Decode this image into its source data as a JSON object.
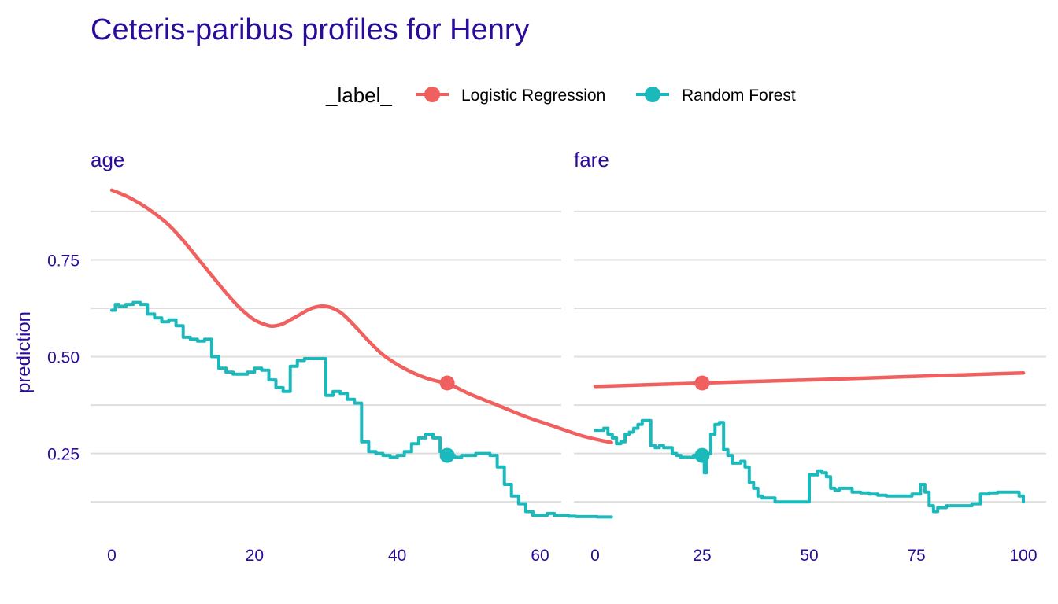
{
  "colors": {
    "logistic_regression": "#F0605F",
    "random_forest": "#1CB9BC",
    "text": "#2B0C99",
    "grid": "#DEDEDE"
  },
  "chart_data": {
    "type": "line",
    "title": "Ceteris-paribus profiles for Henry",
    "ylabel": "prediction",
    "legend": {
      "title": "_label_",
      "position": "top",
      "entries": [
        "Logistic Regression",
        "Random Forest"
      ]
    },
    "grid": "horizontal",
    "ylim": [
      0.04,
      0.95
    ],
    "yticks": [
      0.25,
      0.5,
      0.75
    ],
    "yticks_labels": [
      "0.25",
      "0.50",
      "0.75"
    ],
    "panels": [
      {
        "name": "age",
        "xlim": [
          -3,
          73
        ],
        "xticks": [
          0,
          20,
          40,
          60
        ],
        "xticks_labels": [
          "0",
          "20",
          "40",
          "60"
        ],
        "series": [
          {
            "name": "Logistic Regression",
            "x": [
              0,
              2,
              4,
              6,
              8,
              10,
              12,
              14,
              16,
              18,
              20,
              22,
              23,
              24,
              26,
              28,
              30,
              32,
              34,
              36,
              38,
              40,
              42,
              44,
              46,
              47,
              50,
              54,
              58,
              62,
              66,
              70
            ],
            "y": [
              0.93,
              0.915,
              0.895,
              0.87,
              0.84,
              0.8,
              0.755,
              0.71,
              0.665,
              0.625,
              0.595,
              0.58,
              0.58,
              0.585,
              0.605,
              0.625,
              0.63,
              0.615,
              0.58,
              0.54,
              0.505,
              0.48,
              0.46,
              0.445,
              0.435,
              0.432,
              0.405,
              0.375,
              0.345,
              0.32,
              0.295,
              0.278
            ]
          },
          {
            "name": "Random Forest",
            "step": true,
            "x": [
              0,
              0.5,
              1,
              2,
              3,
              4,
              5,
              6,
              7,
              8,
              9,
              10,
              11,
              12,
              13,
              14,
              15,
              16,
              17,
              18,
              19,
              20,
              21,
              22,
              23,
              24,
              25,
              26,
              27,
              28,
              29,
              30,
              31,
              32,
              33,
              34,
              35,
              36,
              37,
              38,
              39,
              40,
              41,
              42,
              43,
              44,
              45,
              46,
              47,
              48,
              49,
              50,
              51,
              52,
              53,
              54,
              55,
              56,
              57,
              58,
              59,
              60,
              61,
              62,
              63,
              64,
              65,
              66,
              67,
              68,
              69,
              70
            ],
            "y": [
              0.62,
              0.635,
              0.63,
              0.635,
              0.64,
              0.635,
              0.61,
              0.6,
              0.59,
              0.595,
              0.58,
              0.55,
              0.545,
              0.54,
              0.545,
              0.5,
              0.47,
              0.46,
              0.455,
              0.455,
              0.46,
              0.47,
              0.465,
              0.44,
              0.42,
              0.41,
              0.475,
              0.49,
              0.495,
              0.495,
              0.495,
              0.4,
              0.41,
              0.405,
              0.39,
              0.38,
              0.28,
              0.255,
              0.25,
              0.245,
              0.24,
              0.245,
              0.255,
              0.275,
              0.29,
              0.3,
              0.29,
              0.255,
              0.245,
              0.24,
              0.245,
              0.245,
              0.25,
              0.25,
              0.245,
              0.215,
              0.17,
              0.14,
              0.12,
              0.1,
              0.09,
              0.09,
              0.095,
              0.09,
              0.09,
              0.088,
              0.087,
              0.087,
              0.087,
              0.086,
              0.086,
              0.086
            ]
          }
        ],
        "observation": {
          "x": 47,
          "lr": 0.432,
          "rf": 0.245
        }
      },
      {
        "name": "fare",
        "xlim": [
          -2,
          102
        ],
        "xticks": [
          0,
          25,
          50,
          75,
          100
        ],
        "xticks_labels": [
          "0",
          "25",
          "50",
          "75",
          "100"
        ],
        "series": [
          {
            "name": "Logistic Regression",
            "x": [
              0,
              25,
              50,
              75,
              100
            ],
            "y": [
              0.423,
              0.432,
              0.44,
              0.449,
              0.458
            ]
          },
          {
            "name": "Random Forest",
            "step": true,
            "x": [
              0,
              1,
              2,
              3,
              4,
              5,
              6,
              7,
              8,
              9,
              10,
              11,
              12,
              13,
              14,
              15,
              16,
              17,
              18,
              19,
              20,
              21,
              22,
              23,
              24,
              25,
              25.5,
              26,
              27,
              28,
              29,
              30,
              31,
              32,
              33,
              34,
              35,
              36,
              37,
              38,
              39,
              40,
              42,
              44,
              46,
              48,
              50,
              52,
              53,
              54,
              55,
              56,
              57,
              58,
              60,
              62,
              64,
              66,
              68,
              70,
              72,
              74,
              76,
              77,
              78,
              79,
              80,
              82,
              84,
              86,
              88,
              90,
              92,
              94,
              96,
              98,
              99,
              100
            ],
            "y": [
              0.31,
              0.31,
              0.315,
              0.3,
              0.29,
              0.275,
              0.28,
              0.3,
              0.305,
              0.315,
              0.325,
              0.335,
              0.335,
              0.27,
              0.265,
              0.27,
              0.265,
              0.265,
              0.25,
              0.245,
              0.24,
              0.24,
              0.24,
              0.245,
              0.25,
              0.245,
              0.2,
              0.25,
              0.3,
              0.325,
              0.33,
              0.26,
              0.245,
              0.225,
              0.225,
              0.23,
              0.215,
              0.175,
              0.16,
              0.14,
              0.135,
              0.135,
              0.125,
              0.125,
              0.125,
              0.125,
              0.195,
              0.205,
              0.2,
              0.19,
              0.16,
              0.155,
              0.16,
              0.16,
              0.15,
              0.148,
              0.145,
              0.142,
              0.14,
              0.14,
              0.14,
              0.145,
              0.17,
              0.15,
              0.115,
              0.1,
              0.11,
              0.115,
              0.115,
              0.115,
              0.12,
              0.145,
              0.148,
              0.15,
              0.15,
              0.15,
              0.14,
              0.125
            ]
          }
        ],
        "observation": {
          "x": 25,
          "lr": 0.432,
          "rf": 0.245
        }
      }
    ]
  }
}
